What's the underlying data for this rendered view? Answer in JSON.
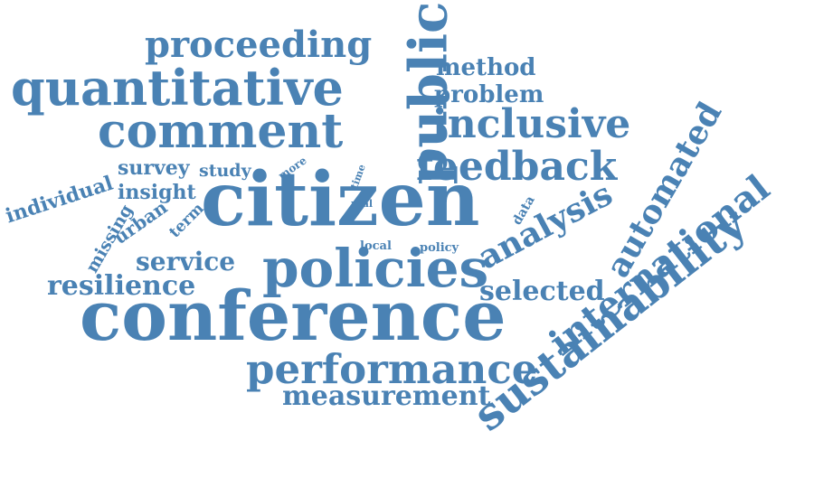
{
  "word_color": "#4a82b4",
  "background_color": "#ffffff",
  "words": {
    "citizen": "citizen",
    "conference": "conference",
    "public": "public",
    "policies": "policies",
    "quantitative": "quantitative",
    "comment": "comment",
    "sustainability": "sustainability",
    "performance": "performance",
    "international": "international",
    "feedback": "feedback",
    "inclusive": "inclusive",
    "proceeding": "proceeding",
    "automated": "automated",
    "analysis": "analysis",
    "measurement": "measurement",
    "resilience": "resilience",
    "service": "service",
    "selected": "selected",
    "method": "method",
    "problem": "problem",
    "individual": "individual",
    "survey": "survey",
    "insight": "insight",
    "study": "study",
    "urban": "urban",
    "missing": "missing",
    "term": "term",
    "more": "more",
    "time": "time",
    "real": "real",
    "data": "data",
    "local": "local",
    "policy": "policy"
  }
}
